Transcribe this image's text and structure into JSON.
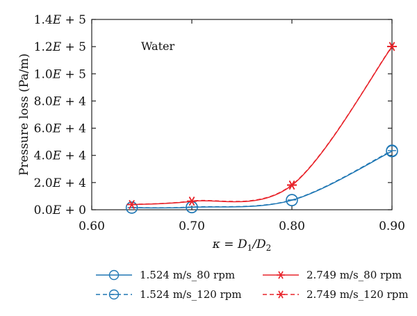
{
  "chart_data": {
    "type": "line",
    "annotation": "Water",
    "xlabel": "κ = D1/D2",
    "ylabel": "Pressure loss (Pa/m)",
    "xlim": [
      0.6,
      0.9
    ],
    "ylim": [
      0,
      140000
    ],
    "x_ticks": [
      0.6,
      0.7,
      0.8,
      0.9
    ],
    "x_tick_labels": [
      "0.60",
      "0.70",
      "0.80",
      "0.90"
    ],
    "y_ticks": [
      0,
      20000,
      40000,
      60000,
      80000,
      100000,
      120000,
      140000
    ],
    "y_tick_labels": [
      "0.0E + 0",
      "2.0E + 4",
      "4.0E + 4",
      "6.0E + 4",
      "8.0E + 4",
      "1.0E + 5",
      "1.2E + 5",
      "1.4E + 5"
    ],
    "grid": false,
    "legend_position": "bottom",
    "x": [
      0.64,
      0.7,
      0.8,
      0.9
    ],
    "series": [
      {
        "name": "1.524 m/s_80 rpm",
        "color": "#1f77b4",
        "marker": "circle",
        "dash": "solid",
        "values": [
          1500,
          1800,
          7000,
          43000
        ]
      },
      {
        "name": "1.524 m/s_120 rpm",
        "color": "#1f77b4",
        "marker": "circle-bar",
        "dash": "dashed",
        "values": [
          1600,
          2000,
          7200,
          43500
        ]
      },
      {
        "name": "2.749 m/s_80 rpm",
        "color": "#e8232a",
        "marker": "asterisk",
        "dash": "solid",
        "values": [
          3800,
          6200,
          18000,
          120000
        ]
      },
      {
        "name": "2.749 m/s_120 rpm",
        "color": "#e8232a",
        "marker": "asterisk",
        "dash": "dashed",
        "values": [
          3900,
          6400,
          18300,
          120200
        ]
      }
    ]
  }
}
